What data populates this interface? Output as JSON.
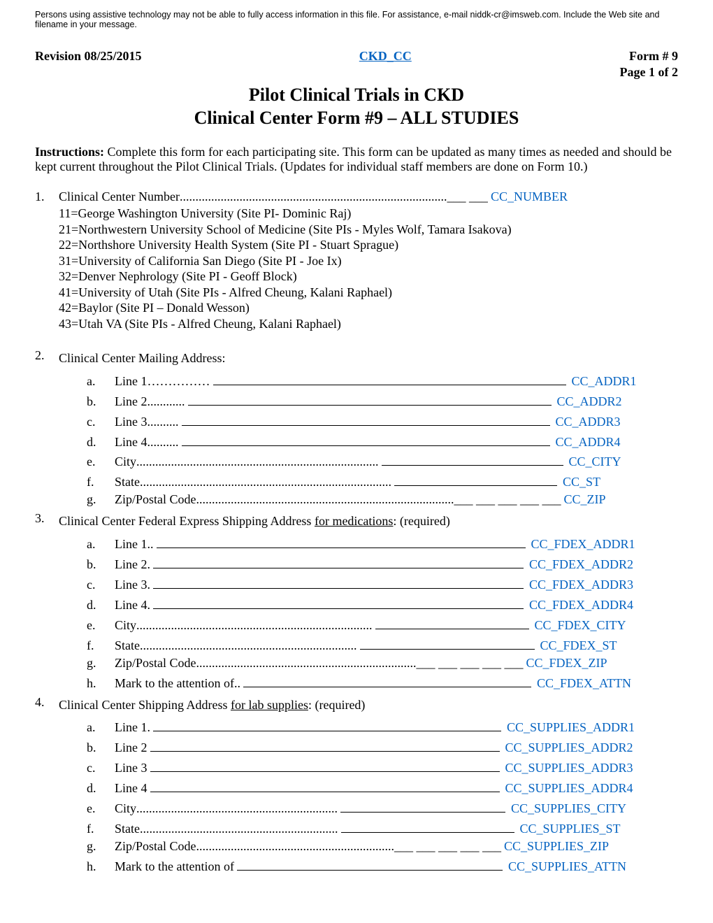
{
  "topnote": "Persons using assistive technology may not be able to fully access information in this file. For assistance, e-mail niddk-cr@imsweb.com. Include the Web site and filename in your message.",
  "header": {
    "revision": "Revision 08/25/2015",
    "link": "CKD_CC",
    "form": "Form # 9",
    "page": "Page 1 of 2"
  },
  "title_line1": "Pilot Clinical Trials in CKD",
  "title_line2": "Clinical Center Form #9 – ALL STUDIES",
  "instructions_label": "Instructions:",
  "instructions_text": "  Complete this form for each participating site.  This form can be updated as many times as needed and should be kept current throughout the Pilot Clinical Trials.  (Updates for individual staff members are done on Form 10.)",
  "q1": {
    "num": "1.",
    "label": "Clinical Center Number",
    "dots": ".....................................................................................___  ___",
    "code": "CC_NUMBER",
    "sites": [
      "11=George Washington University (Site PI- Dominic Raj)",
      "21=Northwestern University School of Medicine (Site PIs - Myles Wolf, Tamara Isakova)",
      "22=Northshore University Health System (Site PI - Stuart Sprague)",
      "31=University of California San Diego (Site PI - Joe Ix)",
      "32=Denver Nephrology (Site PI - Geoff Block)",
      "41=University of Utah (Site PIs - Alfred Cheung, Kalani Raphael)",
      "42=Baylor (Site PI – Donald Wesson)",
      "43=Utah VA (Site PIs - Alfred Cheung, Kalani Raphael)"
    ]
  },
  "q2": {
    "num": "2.",
    "title": "Clinical Center Mailing Address:",
    "items": [
      {
        "letter": "a.",
        "label": "Line 1 ",
        "dots": "…………… ",
        "uwidth": 505,
        "code": "CC_ADDR1"
      },
      {
        "letter": "b.",
        "label": "Line 2 ",
        "dots": "............  ",
        "uwidth": 520,
        "code": "CC_ADDR2"
      },
      {
        "letter": "c.",
        "label": "Line 3 ",
        "dots": "..........  ",
        "uwidth": 527,
        "code": "CC_ADDR3"
      },
      {
        "letter": "d.",
        "label": "Line 4 ",
        "dots": "..........  ",
        "uwidth": 527,
        "code": "CC_ADDR4"
      },
      {
        "letter": "e.",
        "label": "City ",
        "dots": ".............................................................................  ",
        "uwidth": 260,
        "code": "CC_CITY"
      },
      {
        "letter": "f.",
        "label": "State ",
        "dots": "................................................................................  ",
        "uwidth": 233,
        "code": "CC_ST"
      },
      {
        "letter": "g.",
        "label": "Zip/Postal Code ",
        "dots": "..................................................................................",
        "tail": "___  ___  ___  ___  ___",
        "uwidth": 0,
        "code": "CC_ZIP"
      }
    ]
  },
  "q3": {
    "num": "3.",
    "title_pre": "Clinical Center Federal Express Shipping Address ",
    "title_u": "for medications",
    "title_post": ": (required)",
    "items": [
      {
        "letter": "a.",
        "label": "Line 1 ",
        "dots": "..  ",
        "uwidth": 528,
        "code": "CC_FDEX_ADDR1"
      },
      {
        "letter": "b.",
        "label": "Line 2 ",
        "dots": ".  ",
        "uwidth": 530,
        "code": "CC_FDEX_ADDR2"
      },
      {
        "letter": "c.",
        "label": "Line 3 ",
        "dots": ".  ",
        "uwidth": 530,
        "code": "CC_FDEX_ADDR3"
      },
      {
        "letter": "d.",
        "label": "Line 4 ",
        "dots": ".  ",
        "uwidth": 530,
        "code": "CC_FDEX_ADDR4"
      },
      {
        "letter": "e.",
        "label": "City ",
        "dots": "...........................................................................  ",
        "uwidth": 220,
        "code": "CC_FDEX_CITY"
      },
      {
        "letter": "f.",
        "label": "State ",
        "dots": ".....................................................................  ",
        "uwidth": 250,
        "code": "CC_FDEX_ST"
      },
      {
        "letter": "g.",
        "label": "Zip/Postal Code ",
        "dots": "......................................................................",
        "tail": "___  ___  ___  ___  ___",
        "uwidth": 0,
        "code": "CC_FDEX_ZIP"
      },
      {
        "letter": "h.",
        "label": "Mark to the attention of ",
        "dots": "..",
        "uwidth": 412,
        "code": "CC_FDEX_ATTN"
      }
    ]
  },
  "q4": {
    "num": "4.",
    "title_pre": "Clinical Center Shipping Address ",
    "title_u": "for lab supplies",
    "title_post": ": (required)",
    "items": [
      {
        "letter": "a.",
        "label": "Line 1 ",
        "dots": ".   ",
        "uwidth": 498,
        "code": "CC_SUPPLIES_ADDR1"
      },
      {
        "letter": "b.",
        "label": "Line 2 ",
        "dots": "   ",
        "uwidth": 500,
        "code": "CC_SUPPLIES_ADDR2"
      },
      {
        "letter": "c.",
        "label": "Line 3 ",
        "dots": "   ",
        "uwidth": 500,
        "code": "CC_SUPPLIES_ADDR3"
      },
      {
        "letter": "d.",
        "label": "Line 4 ",
        "dots": "   ",
        "uwidth": 500,
        "code": "CC_SUPPLIES_ADDR4"
      },
      {
        "letter": "e.",
        "label": "City ",
        "dots": "................................................................  ",
        "uwidth": 236,
        "code": "CC_SUPPLIES_CITY"
      },
      {
        "letter": "f.",
        "label": "State ",
        "dots": "...............................................................  ",
        "uwidth": 248,
        "code": "CC_SUPPLIES_ST"
      },
      {
        "letter": "g.",
        "label": "Zip/Postal Code ",
        "dots": "...............................................................",
        "tail": "___  ___  ___  ___  ___",
        "uwidth": 0,
        "code": "CC_SUPPLIES_ZIP"
      },
      {
        "letter": "h.",
        "label": "Mark to the attention of ",
        "dots": " ",
        "uwidth": 380,
        "code": "CC_SUPPLIES_ATTN"
      }
    ]
  }
}
